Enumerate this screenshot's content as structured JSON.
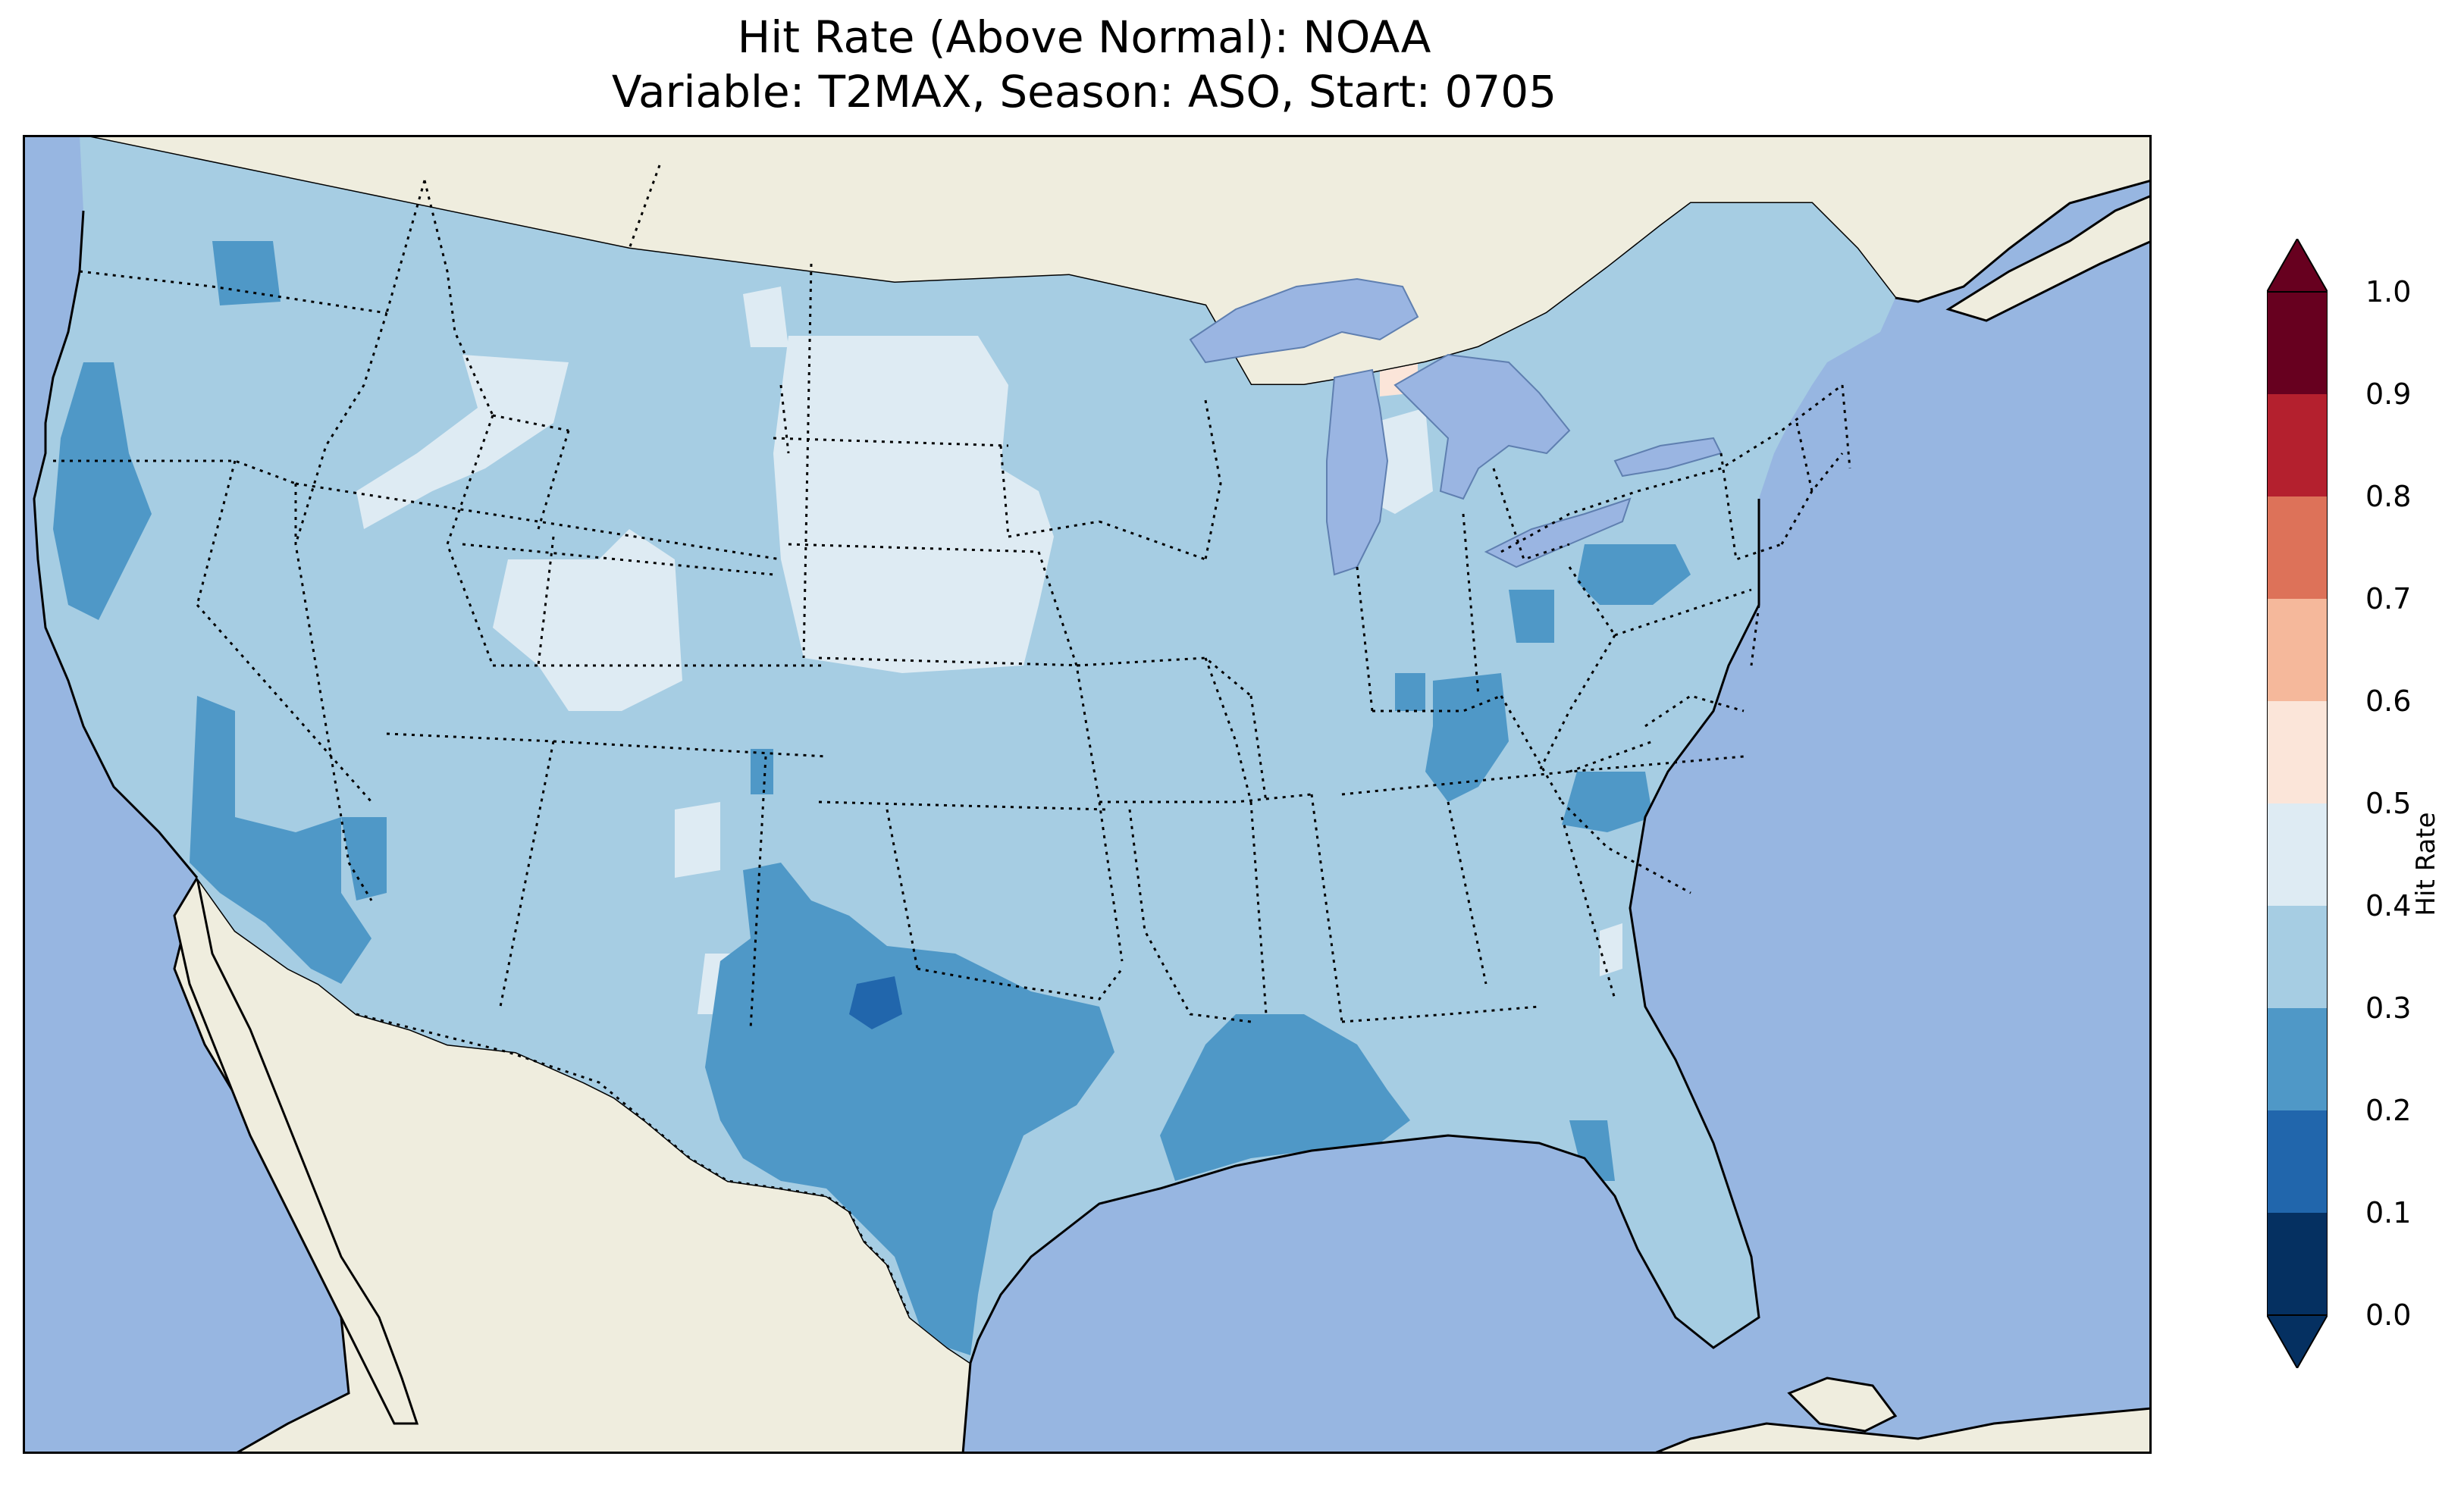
{
  "title": {
    "line1": "Hit Rate (Above Normal): NOAA",
    "line2": "Variable: T2MAX, Season: ASO, Start: 0705"
  },
  "colors": {
    "ocean": "#97b6e1",
    "land": "#efedde",
    "lake": "#9ab5e2",
    "bin_0_1": "#053061",
    "bin_1_2": "#2166ac",
    "bin_2_3": "#4f98c7",
    "bin_3_4": "#a6cde3",
    "bin_4_5": "#deebf3",
    "bin_5_6": "#fbe5d9",
    "bin_6_7": "#f5b89b",
    "bin_7_8": "#dd7259",
    "bin_8_9": "#b4202e",
    "bin_9_10": "#67001f"
  },
  "colorbar": {
    "label": "Hit Rate",
    "extend": "both",
    "ticks": [
      "0.0",
      "0.1",
      "0.2",
      "0.3",
      "0.4",
      "0.5",
      "0.6",
      "0.7",
      "0.8",
      "0.9",
      "1.0"
    ],
    "levels": [
      0.0,
      0.1,
      0.2,
      0.3,
      0.4,
      0.5,
      0.6,
      0.7,
      0.8,
      0.9,
      1.0
    ]
  },
  "map_data": {
    "region": "Contiguous United States",
    "dominant_bin": "0.3-0.4",
    "regions": [
      {
        "area": "Washington northwest",
        "bin": "0.2-0.3"
      },
      {
        "area": "Northern California coast",
        "bin": "0.2-0.3"
      },
      {
        "area": "Southern California / Arizona border",
        "bin": "0.2-0.3"
      },
      {
        "area": "Texas",
        "bin": "0.2-0.3"
      },
      {
        "area": "Central Texas core",
        "bin": "0.1-0.2"
      },
      {
        "area": "Louisiana / Mississippi / Alabama gulf",
        "bin": "0.2-0.3"
      },
      {
        "area": "Mid-Atlantic coast and New England",
        "bin": "0.2-0.3"
      },
      {
        "area": "Pennsylvania",
        "bin": "0.2-0.3"
      },
      {
        "area": "Ohio / Indiana / Kentucky spots",
        "bin": "0.2-0.3"
      },
      {
        "area": "Dakotas / Nebraska",
        "bin": "0.4-0.5"
      },
      {
        "area": "Wyoming / Idaho patches",
        "bin": "0.4-0.5"
      },
      {
        "area": "Northern Michigan",
        "bin": "0.5-0.6"
      }
    ]
  }
}
